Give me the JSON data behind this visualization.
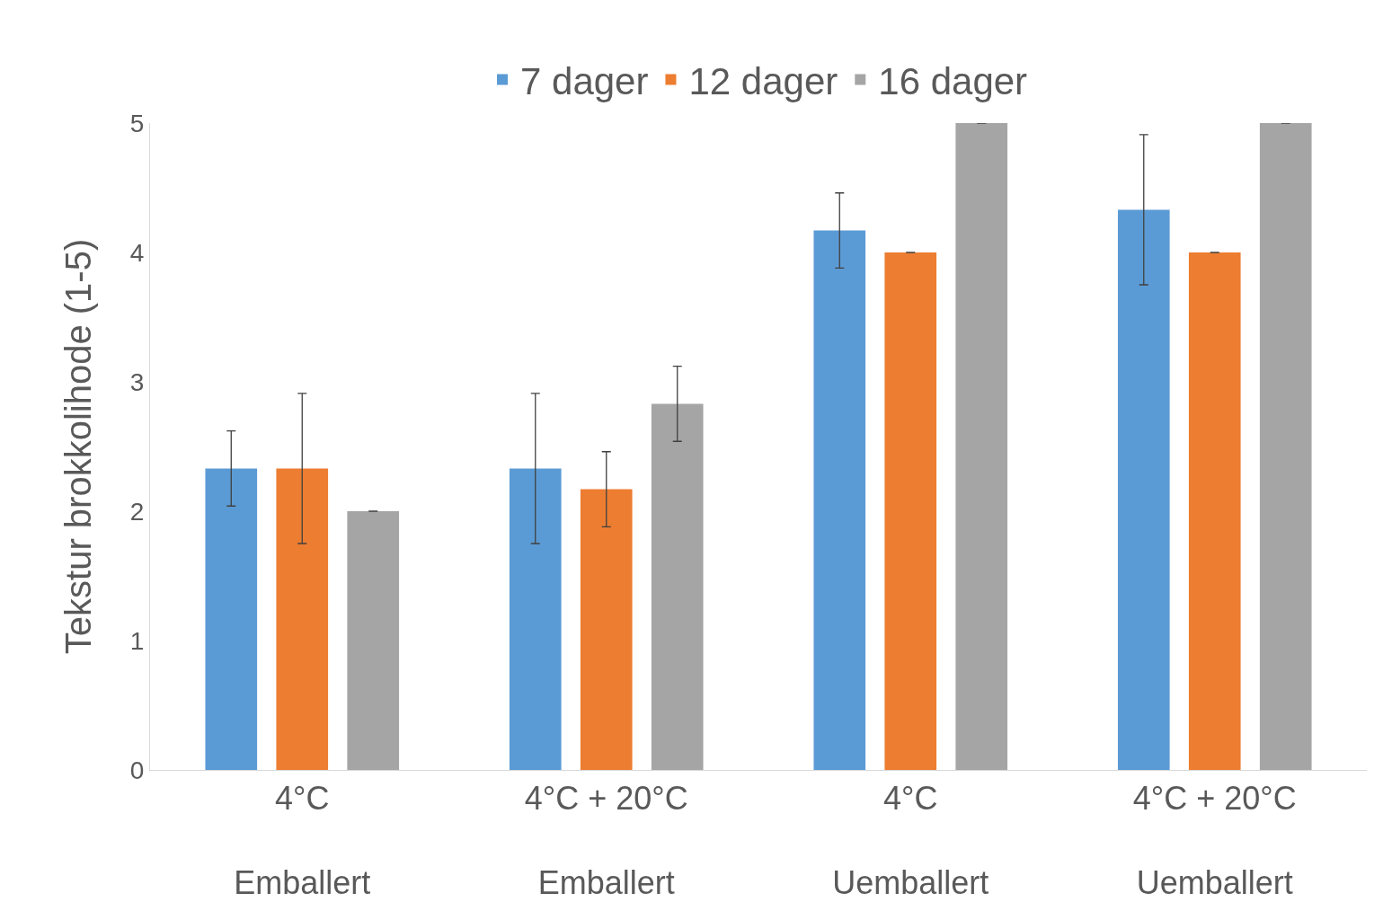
{
  "chart_data": {
    "type": "bar",
    "ylabel": "Tekstur brokkolihode (1-5)",
    "categories": [
      "4°C\nEmballert",
      "4°C + 20°C\nEmballert",
      "4°C\nUemballert",
      "4°C + 20°C\nUemballert"
    ],
    "series": [
      {
        "name": "7 dager",
        "color": "#5b9bd5",
        "values": [
          2.33,
          2.33,
          4.17,
          4.33
        ],
        "errors": [
          0.29,
          0.58,
          0.29,
          0.58
        ]
      },
      {
        "name": "12 dager",
        "color": "#ed7d31",
        "values": [
          2.33,
          2.17,
          4.0,
          4.0
        ],
        "errors": [
          0.58,
          0.29,
          0,
          0
        ]
      },
      {
        "name": "16 dager",
        "color": "#a5a5a5",
        "values": [
          2.0,
          2.83,
          5.0,
          5.0
        ],
        "errors": [
          0,
          0.29,
          0,
          0
        ]
      }
    ],
    "ylim": [
      0,
      5
    ],
    "yticks": [
      0,
      1,
      2,
      3,
      4,
      5
    ],
    "grid": false,
    "legend": "top"
  }
}
